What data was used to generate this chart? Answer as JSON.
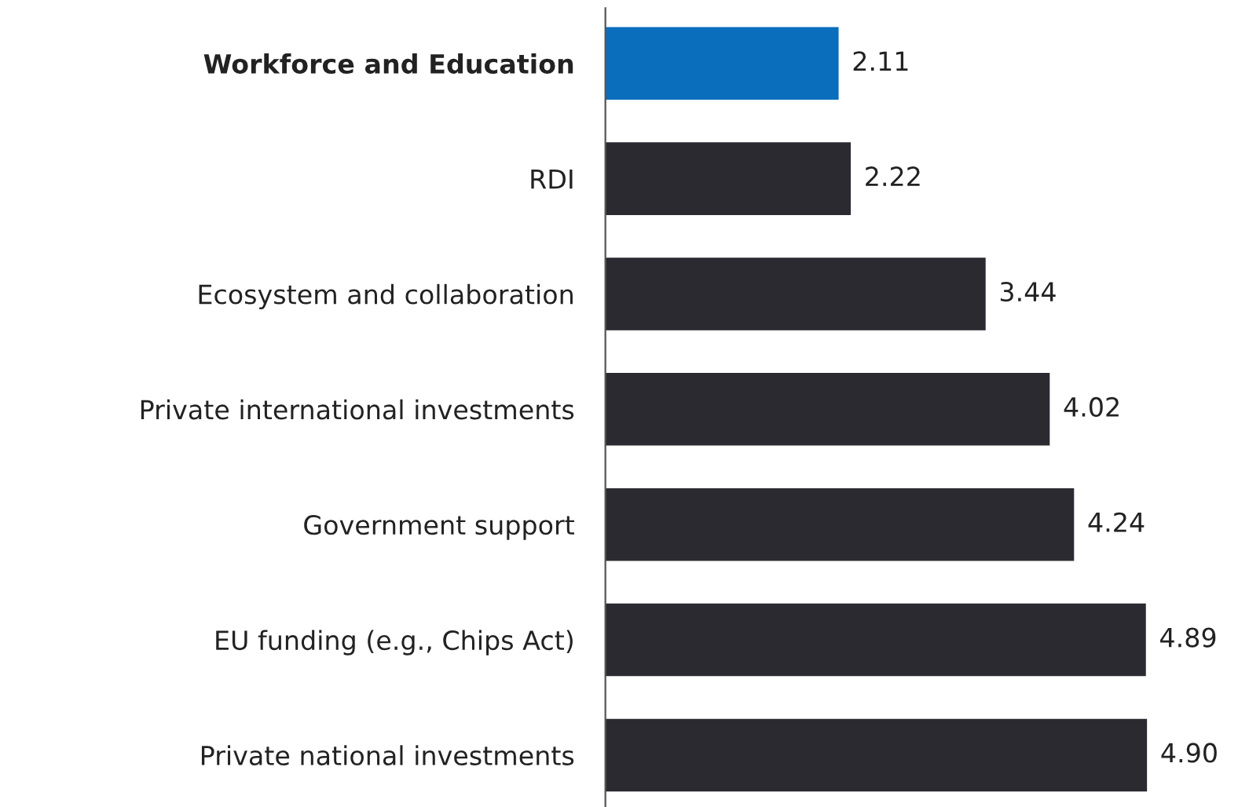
{
  "chart_data": {
    "type": "bar",
    "orientation": "horizontal",
    "categories": [
      "Workforce and Education",
      "RDI",
      "Ecosystem and collaboration",
      "Private international investments",
      "Government support",
      "EU funding (e.g., Chips Act)",
      "Private national investments"
    ],
    "values": [
      2.11,
      2.22,
      3.44,
      4.02,
      4.24,
      4.89,
      4.9
    ],
    "value_labels": [
      "2.11",
      "2.22",
      "3.44",
      "4.02",
      "4.24",
      "4.89",
      "4.90"
    ],
    "colors": [
      "#0a6ebd",
      "#2b2a30",
      "#2b2a30",
      "#2b2a30",
      "#2b2a30",
      "#2b2a30",
      "#2b2a30"
    ],
    "tick_labels": "y",
    "grid": false
  }
}
